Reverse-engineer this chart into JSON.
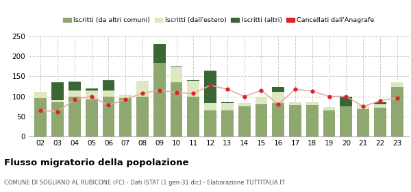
{
  "years": [
    "02",
    "03",
    "04",
    "05",
    "06",
    "07",
    "08",
    "09",
    "10",
    "11",
    "12",
    "13",
    "14",
    "15",
    "16",
    "17",
    "18",
    "19",
    "20",
    "21",
    "22",
    "23"
  ],
  "iscritti_comuni": [
    95,
    85,
    100,
    92,
    100,
    95,
    100,
    183,
    135,
    100,
    65,
    65,
    75,
    80,
    83,
    78,
    78,
    65,
    75,
    68,
    72,
    123
  ],
  "iscritti_estero": [
    17,
    5,
    15,
    22,
    15,
    10,
    38,
    0,
    38,
    38,
    18,
    18,
    8,
    20,
    28,
    8,
    8,
    8,
    0,
    10,
    8,
    12
  ],
  "iscritti_altri": [
    0,
    45,
    22,
    5,
    25,
    0,
    0,
    48,
    2,
    2,
    82,
    2,
    0,
    0,
    12,
    0,
    0,
    0,
    25,
    0,
    5,
    0
  ],
  "cancellati": [
    65,
    62,
    92,
    100,
    78,
    93,
    108,
    115,
    110,
    107,
    128,
    118,
    100,
    115,
    80,
    118,
    113,
    100,
    100,
    75,
    89,
    96
  ],
  "color_comuni": "#8fa870",
  "color_estero": "#dde8c0",
  "color_altri": "#3a6636",
  "color_cancellati_dot": "#dd2222",
  "color_cancellati_line": "#e8a8a8",
  "ylim": [
    0,
    250
  ],
  "yticks": [
    0,
    50,
    100,
    150,
    200,
    250
  ],
  "title": "Flusso migratorio della popolazione",
  "subtitle": "COMUNE DI SOGLIANO AL RUBICONE (FC) - Dati ISTAT (1 gen-31 dic) - Elaborazione TUTTITALIA.IT",
  "legend_labels": [
    "Iscritti (da altri comuni)",
    "Iscritti (dall'estero)",
    "Iscritti (altri)",
    "Cancellati dall'Anagrafe"
  ],
  "bg_color": "#ffffff",
  "grid_color": "#cccccc"
}
